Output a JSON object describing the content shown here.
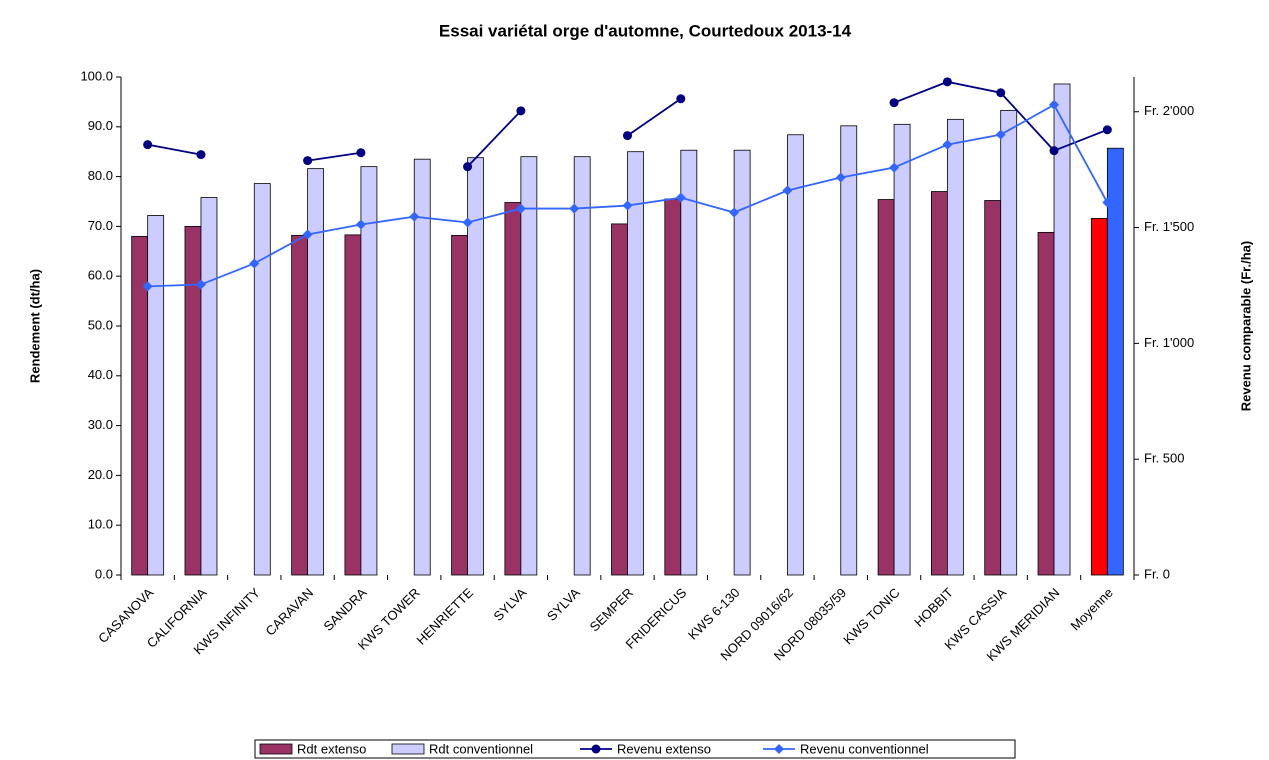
{
  "chart_data": {
    "type": "bar_line",
    "title": "Essai variétal orge d'automne, Courtedoux 2013-14",
    "y_label": "Rendement (dt/ha)",
    "y2_label": "Revenu comparable (Fr./ha)",
    "categories": [
      "CASANOVA",
      "CALIFORNIA",
      "KWS INFINITY",
      "CARAVAN",
      "SANDRA",
      "KWS TOWER",
      "HENRIETTE",
      "SYLVA",
      "SYLVA",
      "SEMPER",
      "FRIDERICUS",
      "KWS 6-130",
      "NORD 09016/62",
      "NORD 08035/59",
      "KWS TONIC",
      "HOBBIT",
      "KWS CASSIA",
      "KWS MERIDIAN",
      "Moyenne"
    ],
    "series": [
      {
        "name": "Rdt extenso",
        "type": "bar",
        "color": "#993366",
        "colors": [
          "#993366",
          "#993366",
          "#993366",
          "#993366",
          "#993366",
          "#993366",
          "#993366",
          "#993366",
          "#993366",
          "#993366",
          "#993366",
          "#993366",
          "#993366",
          "#993366",
          "#993366",
          "#993366",
          "#993366",
          "#993366",
          "#ff0000"
        ],
        "values": [
          68.0,
          70.0,
          null,
          68.2,
          68.3,
          null,
          68.2,
          74.8,
          null,
          70.5,
          75.5,
          null,
          null,
          null,
          75.4,
          77.0,
          75.2,
          68.8,
          71.6
        ]
      },
      {
        "name": "Rdt conventionnel",
        "type": "bar",
        "color": "#ccccff",
        "colors": [
          "#ccccff",
          "#ccccff",
          "#ccccff",
          "#ccccff",
          "#ccccff",
          "#ccccff",
          "#ccccff",
          "#ccccff",
          "#ccccff",
          "#ccccff",
          "#ccccff",
          "#ccccff",
          "#ccccff",
          "#ccccff",
          "#ccccff",
          "#ccccff",
          "#ccccff",
          "#ccccff",
          "#3366ff"
        ],
        "values": [
          72.2,
          75.8,
          78.6,
          81.6,
          82.0,
          83.5,
          83.8,
          84.0,
          84.0,
          85.0,
          85.3,
          85.3,
          88.4,
          90.2,
          90.5,
          91.5,
          93.3,
          98.6,
          85.7
        ]
      },
      {
        "name": "Revenu extenso",
        "type": "line",
        "axis": "y2",
        "color": "#000080",
        "marker": "circle",
        "values": [
          1858,
          1815,
          null,
          1789,
          1823,
          null,
          1763,
          2004,
          null,
          1897,
          2056,
          null,
          null,
          null,
          2039,
          2129,
          2082,
          1832,
          1922
        ]
      },
      {
        "name": "Revenu conventionnel",
        "type": "line",
        "axis": "y2",
        "color": "#3366ff",
        "marker": "diamond",
        "values": [
          1246,
          1254,
          1345,
          1470,
          1513,
          1547,
          1522,
          1582,
          1582,
          1595,
          1629,
          1565,
          1660,
          1716,
          1759,
          1858,
          1901,
          2030,
          1608
        ]
      }
    ],
    "ylim": [
      0,
      100
    ],
    "yticks": [
      {
        "value": 0,
        "label": "0.0"
      },
      {
        "value": 10,
        "label": "10.0"
      },
      {
        "value": 20,
        "label": "20.0"
      },
      {
        "value": 30,
        "label": "30.0"
      },
      {
        "value": 40,
        "label": "40.0"
      },
      {
        "value": 50,
        "label": "50.0"
      },
      {
        "value": 60,
        "label": "60.0"
      },
      {
        "value": 70,
        "label": "70.0"
      },
      {
        "value": 80,
        "label": "80.0"
      },
      {
        "value": 90,
        "label": "90.0"
      },
      {
        "value": 100,
        "label": "100.0"
      }
    ],
    "y2lim": [
      0,
      2150
    ],
    "y2ticks": [
      {
        "value": 0,
        "label": "Fr. 0"
      },
      {
        "value": 500,
        "label": "Fr. 500"
      },
      {
        "value": 1000,
        "label": "Fr. 1'000"
      },
      {
        "value": 1500,
        "label": "Fr. 1'500"
      },
      {
        "value": 2000,
        "label": "Fr. 2'000"
      }
    ],
    "grid": false,
    "legend": "bottom"
  }
}
